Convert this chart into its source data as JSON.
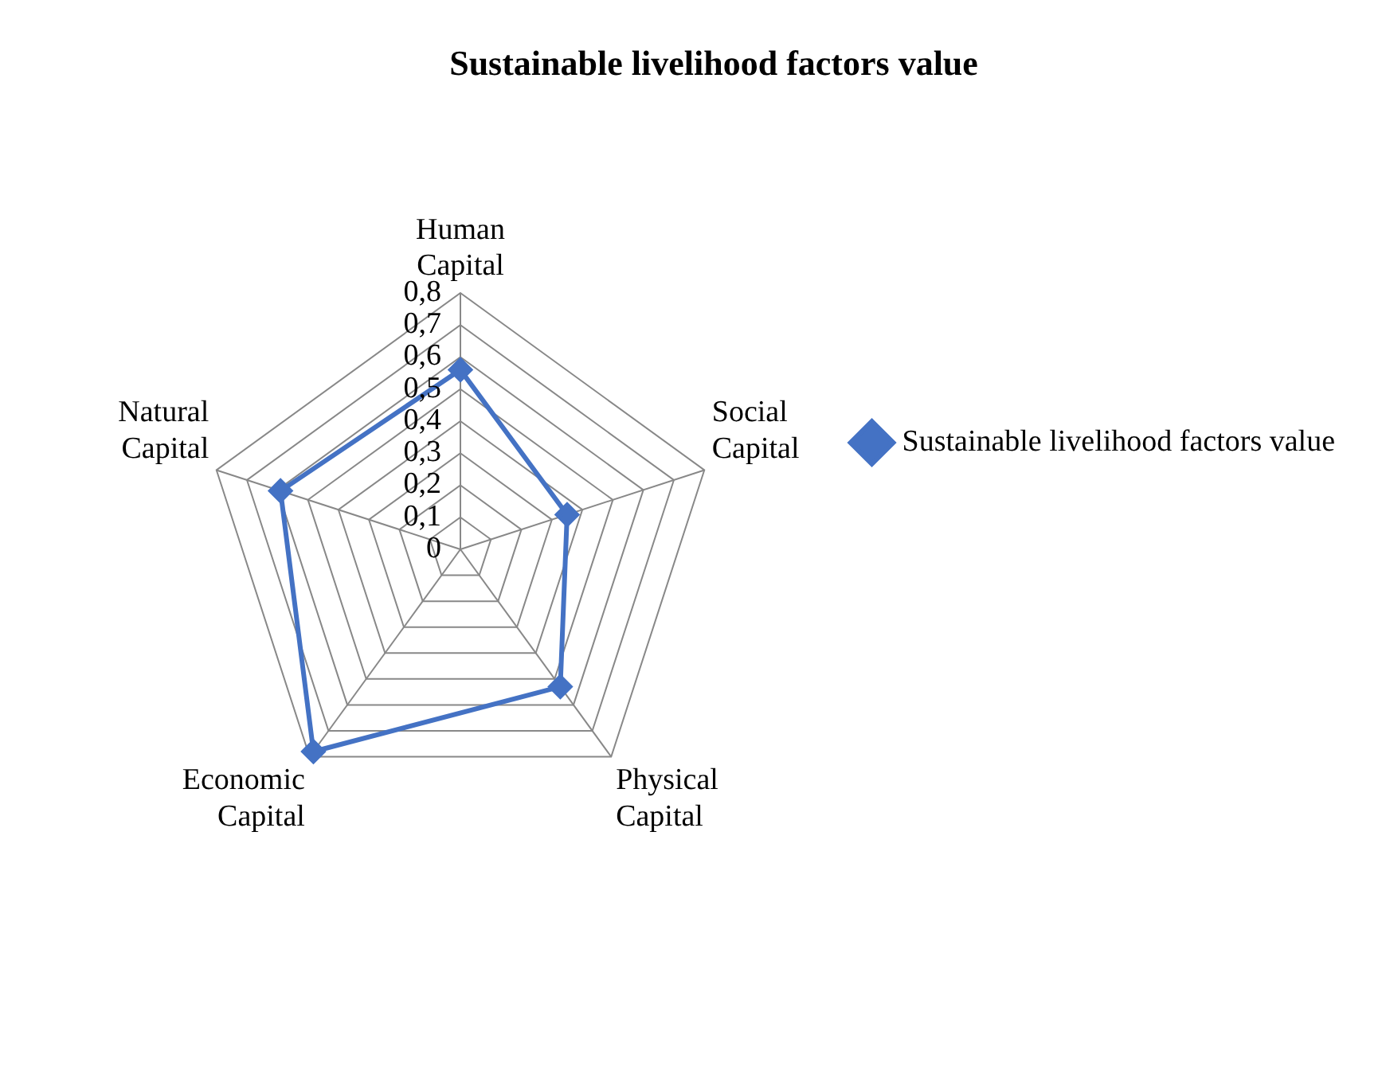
{
  "chart_data": {
    "type": "radar",
    "title": "Sustainable livelihood factors value",
    "categories": [
      "Human Capital",
      "Social Capital",
      "Physical Capital",
      "Economic Capital",
      "Natural Capital"
    ],
    "series": [
      {
        "name": "Sustainable livelihood factors value",
        "color": "#4472c4",
        "values": [
          0.56,
          0.35,
          0.53,
          0.78,
          0.59
        ]
      }
    ],
    "ylim": [
      0,
      0.8
    ],
    "yticks": [
      0,
      {
        "value": 0.1,
        "label": "0,1"
      },
      {
        "value": 0.2,
        "label": "0,2"
      },
      {
        "value": 0.3,
        "label": "0,3"
      },
      {
        "value": 0.4,
        "label": "0,4"
      },
      {
        "value": 0.5,
        "label": "0,5"
      },
      {
        "value": 0.6,
        "label": "0,6"
      },
      {
        "value": 0.7,
        "label": "0,7"
      },
      {
        "value": 0.8,
        "label": "0,8"
      }
    ],
    "grid": true,
    "legend": "right",
    "marker": "diamond",
    "line_style": "solid"
  }
}
